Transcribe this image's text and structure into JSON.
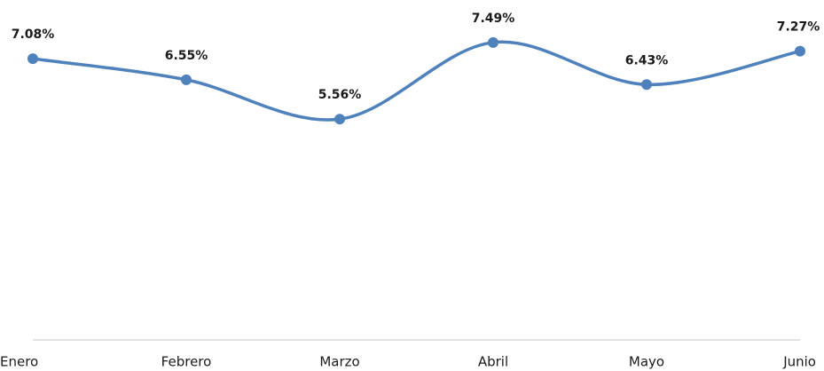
{
  "chart_data": {
    "type": "line",
    "categories": [
      "Enero",
      "Febrero",
      "Marzo",
      "Abril",
      "Mayo",
      "Junio"
    ],
    "series": [
      {
        "color": "#4f81bd",
        "values": [
          7.08,
          6.55,
          5.56,
          7.49,
          6.43,
          7.27
        ],
        "value_labels": [
          "7.08%",
          "6.55%",
          "5.56%",
          "7.49%",
          "6.43%",
          "7.27%"
        ]
      }
    ],
    "ylim": [
      0,
      8
    ]
  }
}
